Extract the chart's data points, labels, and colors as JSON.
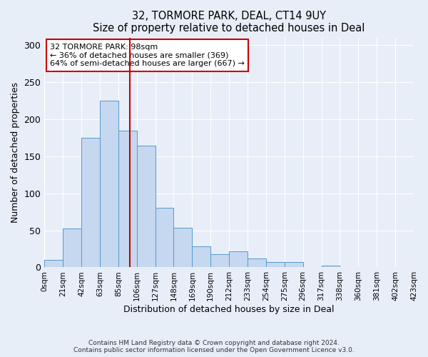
{
  "title": "32, TORMORE PARK, DEAL, CT14 9UY",
  "subtitle": "Size of property relative to detached houses in Deal",
  "xlabel": "Distribution of detached houses by size in Deal",
  "ylabel": "Number of detached properties",
  "bin_labels": [
    "0sqm",
    "21sqm",
    "42sqm",
    "63sqm",
    "85sqm",
    "106sqm",
    "127sqm",
    "148sqm",
    "169sqm",
    "190sqm",
    "212sqm",
    "233sqm",
    "254sqm",
    "275sqm",
    "296sqm",
    "317sqm",
    "338sqm",
    "360sqm",
    "381sqm",
    "402sqm",
    "423sqm"
  ],
  "bar_heights": [
    10,
    52,
    175,
    225,
    184,
    164,
    80,
    53,
    28,
    18,
    22,
    12,
    7,
    7,
    0,
    2,
    0,
    0,
    0,
    0
  ],
  "bar_color": "#c5d8f0",
  "bar_edge_color": "#5599cc",
  "vline_bin": 4,
  "vline_color": "#cc0000",
  "ylim": [
    0,
    310
  ],
  "yticks": [
    0,
    50,
    100,
    150,
    200,
    250,
    300
  ],
  "annotation_title": "32 TORMORE PARK: 98sqm",
  "annotation_line1": "← 36% of detached houses are smaller (369)",
  "annotation_line2": "64% of semi-detached houses are larger (667) →",
  "annotation_box_color": "#ffffff",
  "annotation_box_edge": "#cc0000",
  "background_color": "#e8eef8",
  "grid_color": "#ffffff",
  "footer1": "Contains HM Land Registry data © Crown copyright and database right 2024.",
  "footer2": "Contains public sector information licensed under the Open Government Licence v3.0."
}
